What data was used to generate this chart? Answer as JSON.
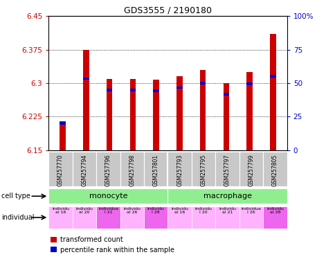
{
  "title": "GDS3555 / 2190180",
  "samples": [
    "GSM257770",
    "GSM257794",
    "GSM257796",
    "GSM257798",
    "GSM257801",
    "GSM257793",
    "GSM257795",
    "GSM257797",
    "GSM257799",
    "GSM257805"
  ],
  "red_values": [
    6.215,
    6.375,
    6.31,
    6.31,
    6.308,
    6.315,
    6.33,
    6.3,
    6.325,
    6.41
  ],
  "blue_values": [
    6.21,
    6.31,
    6.285,
    6.285,
    6.283,
    6.29,
    6.3,
    6.275,
    6.298,
    6.315
  ],
  "ymin": 6.15,
  "ymax": 6.45,
  "yticks": [
    6.15,
    6.225,
    6.3,
    6.375,
    6.45
  ],
  "ytick_labels": [
    "6.15",
    "6.225",
    "6.3",
    "6.375",
    "6.45"
  ],
  "y2ticks_pct": [
    0,
    25,
    50,
    75,
    100
  ],
  "y2tick_labels": [
    "0",
    "25",
    "50",
    "75",
    "100%"
  ],
  "bar_width": 0.25,
  "red_color": "#CC0000",
  "blue_color": "#0000CC",
  "bar_bottom": 6.15,
  "cell_type_labels": [
    "monocyte",
    "macrophage"
  ],
  "cell_type_ranges": [
    [
      0,
      4
    ],
    [
      5,
      9
    ]
  ],
  "cell_type_color": "#90EE90",
  "individual_labels": [
    "individu\nal 16",
    "individu\nal 20",
    "individua\nl 21",
    "individu\nal 26",
    "individu\nl 28",
    "individu\nal 16",
    "individu\nl 20",
    "individu\nal 21",
    "individua\nl 26",
    "individu\nal 28"
  ],
  "individual_colors": [
    "#FFB3FF",
    "#FFB3FF",
    "#EE66EE",
    "#FFB3FF",
    "#EE66EE",
    "#FFB3FF",
    "#FFB3FF",
    "#FFB3FF",
    "#FFB3FF",
    "#EE66EE"
  ],
  "sample_box_color": "#C8C8C8",
  "legend_red": "transformed count",
  "legend_blue": "percentile rank within the sample",
  "left_tick_color": "#CC0000",
  "right_tick_color": "#0000CC"
}
